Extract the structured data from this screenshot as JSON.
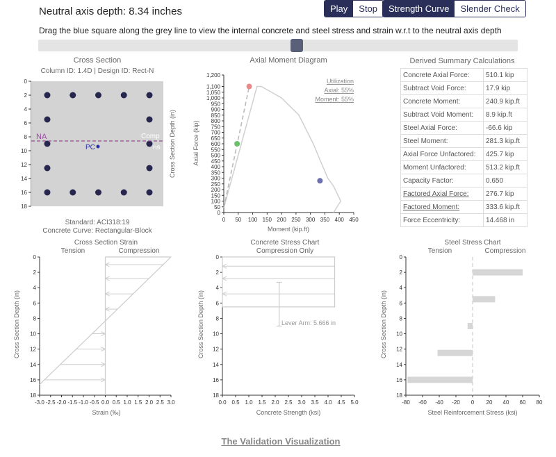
{
  "header": {
    "title": "Neutral axis depth: 8.34 inches",
    "play_label": "Play",
    "stop_label": "Stop",
    "strength_label": "Strength Curve",
    "slender_label": "Slender Check",
    "instructions": "Drag the blue square along the grey line to view the internal concrete and steel stress and strain w.r.t to the neutral axis depth",
    "slider_value_in": 8.34
  },
  "cross_section": {
    "title": "Cross Section",
    "subtitle": "Column ID: 1.4D | Design ID: Rect-N",
    "y_label": "Cross Section Depth (in)",
    "y_ticks": [
      "0",
      "2",
      "4",
      "6",
      "8",
      "10",
      "12",
      "14",
      "16",
      "18"
    ],
    "na_label": "NA",
    "pc_label": "PC",
    "comp_label": "Comp",
    "tens_label": "ns",
    "standard": "Standard: ACI318:19",
    "curve": "Concrete Curve: Rectangular-Block"
  },
  "axial_moment": {
    "title": "Axial Moment Diagram",
    "y_label": "Axial Force (kip)",
    "x_label": "Moment (kip.ft)",
    "y_ticks": [
      "0",
      "50",
      "100",
      "150",
      "200",
      "250",
      "300",
      "350",
      "400",
      "450",
      "500",
      "550",
      "600",
      "650",
      "700",
      "750",
      "800",
      "850",
      "900",
      "950",
      "1,000",
      "1,050",
      "1,100",
      "1,200"
    ],
    "x_ticks": [
      "0",
      "50",
      "100",
      "150",
      "200",
      "250",
      "300",
      "350",
      "400",
      "450"
    ],
    "util_title": "Utilization",
    "util_axial": "Axial: 55%",
    "util_moment": "Moment: 55%"
  },
  "summary": {
    "title": "Derived Summary Calculations",
    "rows": [
      {
        "k": "Concrete Axial Force:",
        "v": "510.1 kip"
      },
      {
        "k": "Subtract Void Force:",
        "v": "17.9 kip"
      },
      {
        "k": "Concrete Moment:",
        "v": "240.9 kip.ft"
      },
      {
        "k": "Subtract Void Moment:",
        "v": "8.9 kip.ft"
      },
      {
        "k": "Steel Axial Force:",
        "v": "-66.6 kip"
      },
      {
        "k": "Steel Moment:",
        "v": "281.3 kip.ft"
      },
      {
        "k": "Axial Force Unfactored:",
        "v": "425.7 kip"
      },
      {
        "k": "Moment Unfactored:",
        "v": "513.2 kip.ft"
      },
      {
        "k": "Capacity Factor:",
        "v": "0.650"
      },
      {
        "k": "Factored Axial Force:",
        "v": "276.7 kip"
      },
      {
        "k": "Factored Moment:",
        "v": "333.6 kip.ft"
      },
      {
        "k": "Force Eccentricity:",
        "v": "14.468 in"
      }
    ]
  },
  "strain": {
    "title": "Cross Section Strain",
    "tension": "Tension",
    "compression": "Compression",
    "x_label": "Strain (‰)",
    "y_label": "Cross Section Depth (in)",
    "x_ticks": [
      "-3.0",
      "-2.5",
      "-2.0",
      "-1.5",
      "-1.0",
      "-0.5",
      "0.0",
      "0.5",
      "1.0",
      "1.5",
      "2.0",
      "2.5",
      "3.0"
    ],
    "y_ticks": [
      "0",
      "2",
      "4",
      "6",
      "8",
      "10",
      "12",
      "14",
      "16",
      "18"
    ]
  },
  "concrete": {
    "title": "Concrete Stress Chart",
    "subtitle": "Compression Only",
    "x_label": "Concrete Strength (ksi)",
    "y_label": "Cross Section Depth (in)",
    "lever_arm": "Lever Arm: 5.666 in",
    "x_ticks": [
      "0.0",
      "0.5",
      "1.0",
      "1.5",
      "2.0",
      "2.5",
      "3.0",
      "3.5",
      "4.0",
      "4.5",
      "5.0"
    ],
    "y_ticks": [
      "0",
      "2",
      "4",
      "6",
      "8",
      "10",
      "12",
      "14",
      "16",
      "18"
    ]
  },
  "steel": {
    "title": "Steel Stress Chart",
    "tension": "Tension",
    "compression": "Compression",
    "x_label": "Steel Reinforcement Stress (ksi)",
    "y_label": "Cross Section Depth (in)",
    "x_ticks": [
      "-80",
      "-60",
      "-40",
      "-20",
      "0",
      "20",
      "40",
      "60",
      "80"
    ],
    "y_ticks": [
      "0",
      "2",
      "4",
      "6",
      "8",
      "10",
      "12",
      "14",
      "16",
      "18"
    ]
  },
  "chart_data": [
    {
      "type": "line",
      "title": "Axial Moment Diagram",
      "xlabel": "Moment (kip.ft)",
      "ylabel": "Axial Force (kip)",
      "xlim": [
        0,
        450
      ],
      "ylim": [
        0,
        1200
      ],
      "series": [
        {
          "values": [
            [
              0,
              40
            ],
            [
              115,
              1100
            ],
            [
              130,
              1100
            ],
            [
              200,
              1000
            ],
            [
              260,
              850
            ],
            [
              310,
              600
            ],
            [
              333,
              460
            ],
            [
              360,
              300
            ],
            [
              380,
              230
            ],
            [
              405,
              100
            ],
            [
              380,
              0
            ]
          ]
        }
      ],
      "points": [
        {
          "x": 88,
          "y": 1100,
          "color": "#e88a8a"
        },
        {
          "x": 46,
          "y": 600,
          "color": "#6cbf6c"
        },
        {
          "x": 333,
          "y": 277,
          "color": "#6b70b0"
        }
      ]
    },
    {
      "type": "line",
      "title": "Cross Section Strain",
      "xlabel": "Strain (‰)",
      "ylabel": "Cross Section Depth (in)",
      "xlim": [
        -3.0,
        3.0
      ],
      "ylim": [
        0,
        18
      ],
      "series": [
        {
          "values": [
            [
              3.0,
              0
            ],
            [
              0.0,
              8.34
            ],
            [
              -3.0,
              16.6
            ]
          ]
        }
      ]
    },
    {
      "type": "bar",
      "title": "Concrete Stress Chart",
      "xlabel": "Concrete Strength (ksi)",
      "ylabel": "Cross Section Depth (in)",
      "xlim": [
        0,
        5.0
      ],
      "ylim": [
        0,
        18
      ],
      "stress_block_depth": 6.5,
      "stress_value": 4.25
    },
    {
      "type": "bar",
      "title": "Steel Stress Chart",
      "xlabel": "Steel Reinforcement Stress (ksi)",
      "ylabel": "Cross Section Depth (in)",
      "xlim": [
        -80,
        80
      ],
      "ylim": [
        0,
        18
      ],
      "categories": [
        2,
        5.5,
        9,
        12.5,
        16
      ],
      "values": [
        60,
        27,
        -6,
        -42,
        -78
      ]
    }
  ]
}
